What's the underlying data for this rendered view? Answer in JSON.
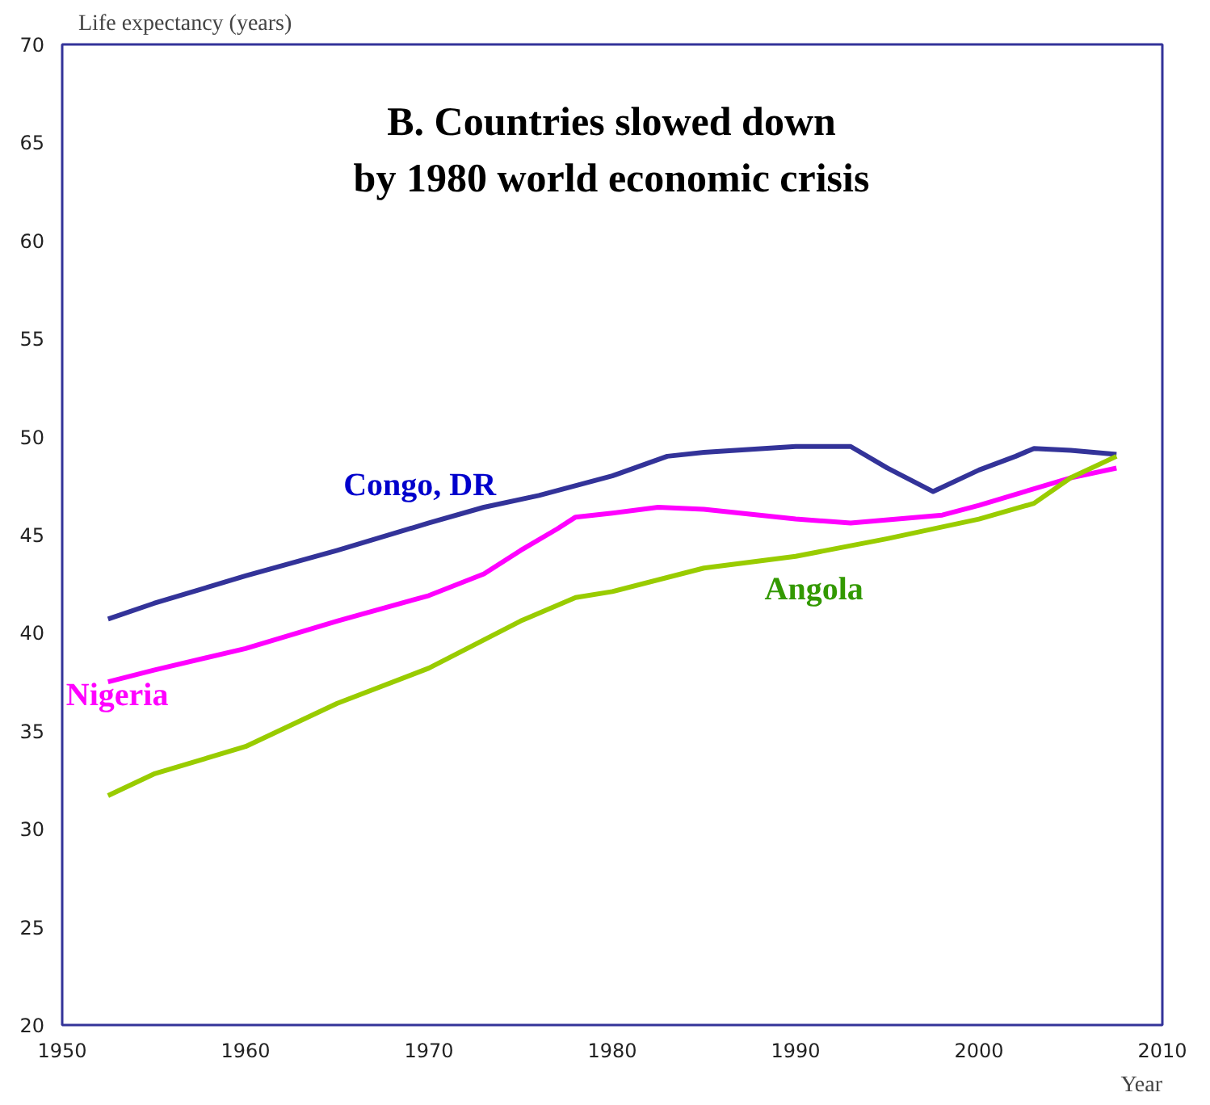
{
  "chart_data": {
    "type": "line",
    "title": "B. Countries slowed down\nby 1980 world economic crisis",
    "ylabel": "Life expectancy (years)",
    "xlabel": "Year",
    "xlim": [
      1950,
      2010
    ],
    "ylim": [
      20,
      70
    ],
    "xticks": [
      1950,
      1960,
      1970,
      1980,
      1990,
      2000,
      2010
    ],
    "yticks": [
      20,
      25,
      30,
      35,
      40,
      45,
      50,
      55,
      60,
      65,
      70
    ],
    "grid": false,
    "marker": "none",
    "line_style": "solid",
    "series": [
      {
        "name": "Congo, DR",
        "color": "#333399",
        "x": [
          1952.5,
          1955,
          1960,
          1965,
          1970,
          1973,
          1976,
          1980,
          1983,
          1985,
          1990,
          1993,
          1995,
          1997.5,
          2000,
          2002,
          2003,
          2005,
          2007.5
        ],
        "values": [
          40.7,
          41.5,
          42.9,
          44.2,
          45.6,
          46.4,
          47.0,
          48.0,
          49.0,
          49.2,
          49.5,
          49.5,
          48.4,
          47.2,
          48.3,
          49.0,
          49.4,
          49.3,
          49.1
        ]
      },
      {
        "name": "Nigeria",
        "color": "#ff00ff",
        "x": [
          1952.5,
          1955,
          1960,
          1965,
          1970,
          1973,
          1975,
          1977,
          1978,
          1980,
          1982.5,
          1985,
          1990,
          1993,
          1998,
          2000,
          2005,
          2007.5
        ],
        "values": [
          37.5,
          38.1,
          39.2,
          40.6,
          41.9,
          43.0,
          44.2,
          45.3,
          45.9,
          46.1,
          46.4,
          46.3,
          45.8,
          45.6,
          46.0,
          46.5,
          47.9,
          48.4
        ]
      },
      {
        "name": "Angola",
        "color": "#99cc00",
        "x": [
          1952.5,
          1955,
          1960,
          1965,
          1970,
          1975,
          1978,
          1980,
          1985,
          1990,
          1995,
          2000,
          2003,
          2005,
          2007.5
        ],
        "values": [
          31.7,
          32.8,
          34.2,
          36.4,
          38.2,
          40.6,
          41.8,
          42.1,
          43.3,
          43.9,
          44.8,
          45.8,
          46.6,
          47.9,
          49.0
        ]
      }
    ]
  }
}
